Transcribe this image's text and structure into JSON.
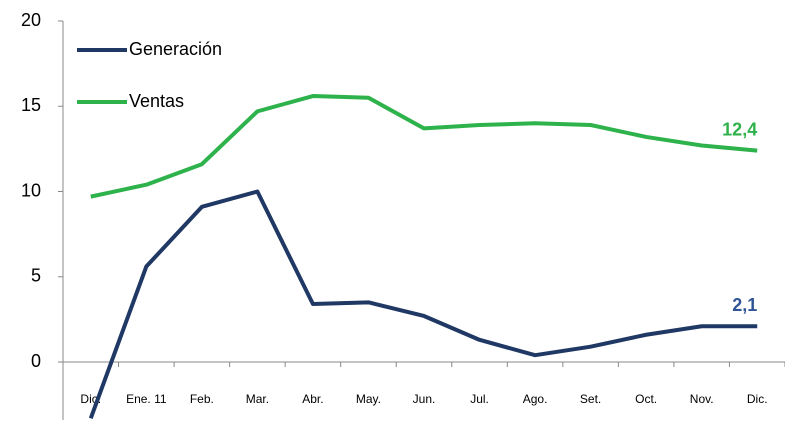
{
  "chart_data": {
    "type": "line",
    "categories": [
      "Dic.",
      "Ene. 11",
      "Feb.",
      "Mar.",
      "Abr.",
      "May.",
      "Jun.",
      "Jul.",
      "Ago.",
      "Set.",
      "Oct.",
      "Nov.",
      "Dic."
    ],
    "series": [
      {
        "name": "Generación",
        "color": "#1f3864",
        "values": [
          -3.3,
          5.6,
          9.1,
          10.0,
          3.4,
          3.5,
          2.7,
          1.3,
          0.4,
          0.9,
          1.6,
          2.1,
          2.1
        ],
        "value_labels": [
          null,
          null,
          null,
          null,
          null,
          null,
          null,
          null,
          null,
          null,
          null,
          null,
          "2,1"
        ],
        "label_color": "#2f5597"
      },
      {
        "name": "Ventas",
        "color": "#2eb24b",
        "values": [
          9.7,
          10.4,
          11.6,
          14.7,
          15.6,
          15.5,
          13.7,
          13.9,
          14.0,
          13.9,
          13.2,
          12.7,
          12.4
        ],
        "value_labels": [
          null,
          null,
          null,
          null,
          null,
          null,
          null,
          null,
          null,
          null,
          null,
          null,
          "12,4"
        ],
        "label_color": "#2eb24b"
      }
    ],
    "ylim": [
      -3.4,
      20
    ],
    "yticks": [
      0,
      5,
      10,
      15,
      20
    ],
    "grid": false,
    "legend": "top-left"
  }
}
